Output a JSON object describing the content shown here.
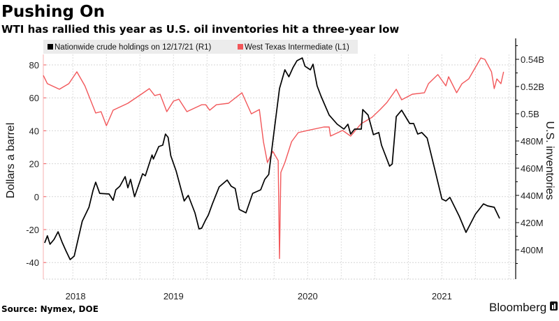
{
  "header": {
    "title": "Pushing On",
    "subtitle": "WTI has rallied this year as U.S. oil inventories hit a three-year low"
  },
  "footer": {
    "source": "Source: Nymex, DOE",
    "brand": "Bloomberg"
  },
  "chart_data": {
    "type": "line",
    "title": "Pushing On",
    "subtitle": "WTI has rallied this year as U.S. oil inventories hit a three-year low",
    "legend_position": "top-left",
    "grid": true,
    "x_ticks": [
      {
        "value": 2018.27,
        "label": "2018"
      },
      {
        "value": 2019.0,
        "label": "2019"
      },
      {
        "value": 2020.0,
        "label": "2020"
      },
      {
        "value": 2021.0,
        "label": "2021"
      }
    ],
    "xlim": [
      2018.03,
      2021.55
    ],
    "left_axis": {
      "label": "Dollars a barrel",
      "ylim": [
        -47,
        97
      ],
      "ticks": [
        {
          "value": 80,
          "label": "80"
        },
        {
          "value": 60,
          "label": "60"
        },
        {
          "value": 40,
          "label": "40"
        },
        {
          "value": 20,
          "label": "20"
        },
        {
          "value": 0,
          "label": "0"
        },
        {
          "value": -20,
          "label": "-20"
        },
        {
          "value": -40,
          "label": "-40"
        }
      ]
    },
    "right_axis": {
      "label": "U.S. inventories",
      "ylim": [
        383,
        555
      ],
      "ticks": [
        {
          "value": 540,
          "label": "0.54B"
        },
        {
          "value": 520,
          "label": "0.52B"
        },
        {
          "value": 500,
          "label": "0.5B"
        },
        {
          "value": 480,
          "label": "480M"
        },
        {
          "value": 460,
          "label": "460M"
        },
        {
          "value": 440,
          "label": "440M"
        },
        {
          "value": 420,
          "label": "420M"
        },
        {
          "value": 400,
          "label": "400M"
        }
      ]
    },
    "series": [
      {
        "name": "Nationwide crude holdings on 12/17/21 (R1)",
        "axis": "right",
        "color": "#000000",
        "x": [
          2018.04,
          2018.06,
          2018.08,
          2018.11,
          2018.14,
          2018.17,
          2018.2,
          2018.23,
          2018.26,
          2018.32,
          2018.37,
          2018.4,
          2018.42,
          2018.45,
          2018.52,
          2018.55,
          2018.57,
          2018.6,
          2018.64,
          2018.66,
          2018.68,
          2018.71,
          2018.77,
          2018.79,
          2018.84,
          2018.85,
          2018.89,
          2018.92,
          2018.94,
          2018.96,
          2018.98,
          2019.02,
          2019.08,
          2019.11,
          2019.16,
          2019.19,
          2019.21,
          2019.24,
          2019.26,
          2019.29,
          2019.34,
          2019.4,
          2019.43,
          2019.46,
          2019.49,
          2019.54,
          2019.59,
          2019.65,
          2019.68,
          2019.71,
          2019.74,
          2019.79,
          2019.83,
          2019.86,
          2019.89,
          2019.92,
          2019.96,
          2019.98,
          2020.02,
          2020.04,
          2020.07,
          2020.1,
          2020.16,
          2020.22,
          2020.27,
          2020.3,
          2020.32,
          2020.35,
          2020.4,
          2020.41,
          2020.45,
          2020.49,
          2020.53,
          2020.55,
          2020.61,
          2020.63,
          2020.66,
          2020.7,
          2020.76,
          2020.79,
          2020.82,
          2020.85,
          2020.89,
          2020.95,
          2021.0,
          2021.03,
          2021.06,
          2021.13,
          2021.18,
          2021.25,
          2021.31,
          2021.34,
          2021.39,
          2021.43
        ],
        "y": [
          405.1,
          410.3,
          404.1,
          407.7,
          413.3,
          405.6,
          399.0,
          392.8,
          395.4,
          421.0,
          431.3,
          443.6,
          449.7,
          441.5,
          441.0,
          436.4,
          444.1,
          446.7,
          453.8,
          445.6,
          451.8,
          439.0,
          455.9,
          454.4,
          469.7,
          466.7,
          475.9,
          476.9,
          485.1,
          482.6,
          469.2,
          457.9,
          435.9,
          440.0,
          427.2,
          415.4,
          415.9,
          422.1,
          425.6,
          433.8,
          446.2,
          451.3,
          446.7,
          445.1,
          429.7,
          427.2,
          441.5,
          444.1,
          451.8,
          455.4,
          479.5,
          518.5,
          532.3,
          527.2,
          533.8,
          539.0,
          541.0,
          534.9,
          532.3,
          536.4,
          520.5,
          512.8,
          499.0,
          492.3,
          488.7,
          492.3,
          485.1,
          488.7,
          488.7,
          503.1,
          499.0,
          484.6,
          486.2,
          476.9,
          461.5,
          463.1,
          497.9,
          502.6,
          492.8,
          492.8,
          485.1,
          486.2,
          482.1,
          457.9,
          437.4,
          435.9,
          438.5,
          424.6,
          412.8,
          426.2,
          433.8,
          432.3,
          431.3,
          423.1
        ]
      },
      {
        "name": "West Texas Intermediate (L1)",
        "axis": "left",
        "color": "#f2575a",
        "x": [
          2018.03,
          2018.06,
          2018.15,
          2018.22,
          2018.28,
          2018.34,
          2018.42,
          2018.46,
          2018.5,
          2018.55,
          2018.66,
          2018.76,
          2018.82,
          2018.86,
          2018.9,
          2018.95,
          2019.0,
          2019.04,
          2019.1,
          2019.21,
          2019.24,
          2019.27,
          2019.32,
          2019.41,
          2019.51,
          2019.58,
          2019.64,
          2019.67,
          2019.7,
          2019.74,
          2019.78,
          2019.79,
          2019.8,
          2019.83,
          2019.88,
          2019.93,
          2020.0,
          2020.12,
          2020.16,
          2020.17,
          2020.26,
          2020.32,
          2020.4,
          2020.42,
          2020.48,
          2020.54,
          2020.59,
          2020.66,
          2020.7,
          2020.78,
          2020.87,
          2020.9,
          2020.97,
          2021.03,
          2021.05,
          2021.11,
          2021.15,
          2021.2,
          2021.29,
          2021.32,
          2021.37,
          2021.39,
          2021.41,
          2021.44,
          2021.46
        ],
        "y": [
          73.6,
          68.6,
          65.2,
          68.6,
          75.8,
          67.3,
          50.8,
          51.6,
          43.1,
          52.5,
          56.7,
          62.2,
          65.6,
          61.4,
          62.2,
          51.6,
          58.0,
          59.2,
          51.6,
          55.8,
          55.8,
          52.5,
          55.8,
          56.7,
          63.1,
          50.3,
          52.9,
          33.4,
          20.7,
          27.5,
          21.9,
          -37.6,
          14.7,
          20.7,
          33.4,
          38.9,
          40.2,
          42.3,
          42.3,
          36.8,
          40.2,
          36.8,
          44.4,
          45.3,
          48.2,
          52.9,
          57.1,
          65.2,
          58.8,
          62.2,
          63.1,
          68.6,
          74.1,
          67.3,
          72.8,
          63.1,
          68.6,
          71.5,
          84.2,
          83.4,
          75.8,
          65.6,
          71.5,
          68.6,
          75.8
        ]
      }
    ]
  }
}
